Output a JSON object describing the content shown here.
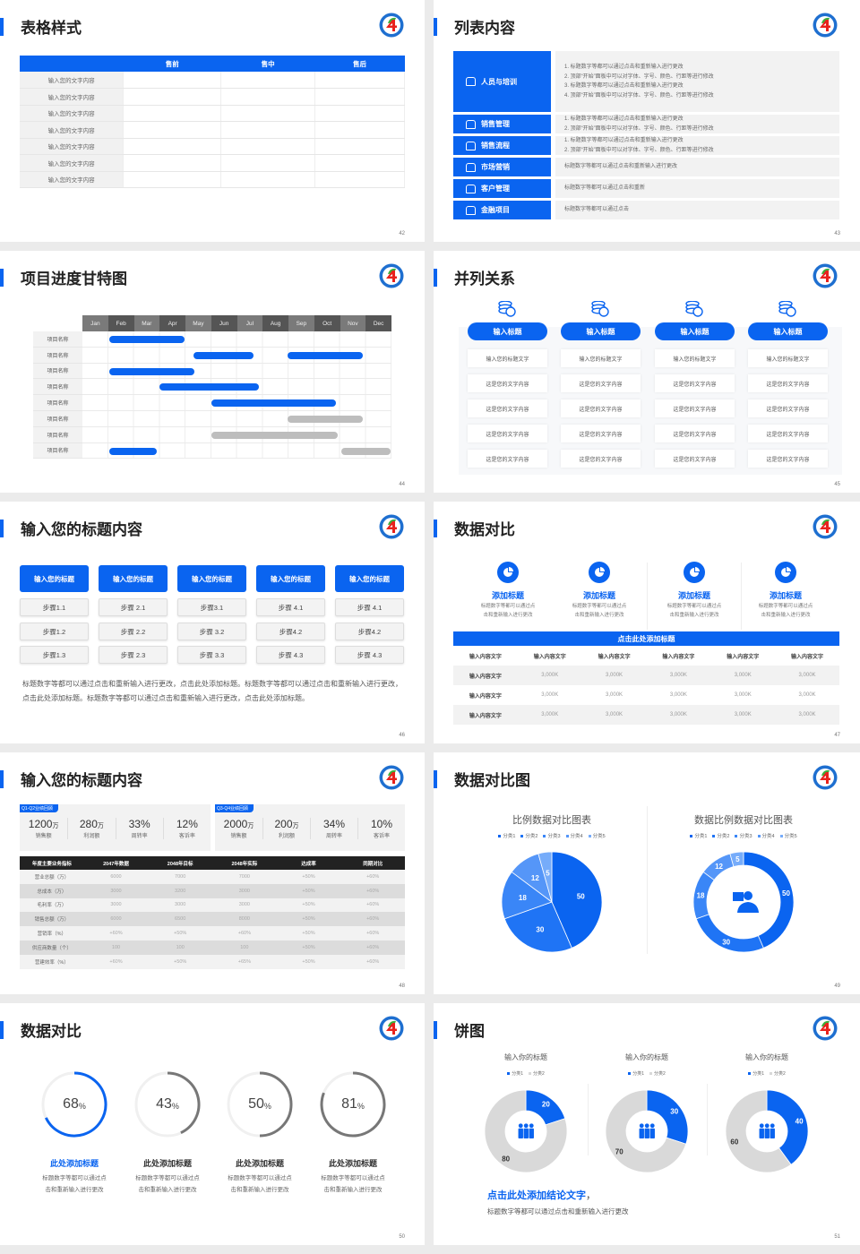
{
  "palette": {
    "accent": "#0a64f0",
    "gray_bar": "#bdbdbd",
    "ring_gray": "#777777",
    "track": "#f0f0f0",
    "donut_gray": "#d9d9d9",
    "pie": [
      "#0a64f0",
      "#1f74f5",
      "#3a86f7",
      "#5596f8",
      "#76acfa"
    ]
  },
  "s42": {
    "title": "表格样式",
    "page": "42",
    "table": {
      "headers": [
        "",
        "售前",
        "售中",
        "售后"
      ],
      "rows": [
        "输入您的文字内容",
        "输入您的文字内容",
        "输入您的文字内容",
        "输入您的文字内容",
        "输入您的文字内容",
        "输入您的文字内容",
        "输入您的文字内容"
      ]
    }
  },
  "s43": {
    "title": "列表内容",
    "page": "43",
    "items": [
      {
        "label": "人员与培训",
        "icon": "training-icon",
        "lines": [
          "1.   标题数字等都可以通过点击和重新输入进行更改",
          "2.   顶部“开始”面板中可以对字体、字号、颜色、行距等进行修改",
          "3.   标题数字等都可以通过点击和重新输入进行更改",
          "4.   顶部“开始”面板中可以对字体、字号、颜色、行距等进行修改"
        ]
      },
      {
        "label": "销售管理",
        "icon": "user-gear-icon",
        "lines": [
          "1.   标题数字等都可以通过点击和重新输入进行更改",
          "2.   顶部“开始”面板中可以对字体、字号、颜色、行距等进行修改"
        ]
      },
      {
        "label": "销售流程",
        "icon": "cycle-icon",
        "lines": [
          "1.   标题数字等都可以通过点击和重新输入进行更改",
          "2.   顶部“开始”面板中可以对字体、字号、颜色、行距等进行修改"
        ]
      },
      {
        "label": "市场营销",
        "icon": "bar-chart-icon",
        "lines": [
          "标题数字等都可以通过点击和重新输入进行更改"
        ]
      },
      {
        "label": "客户管理",
        "icon": "users-icon",
        "lines": [
          "标题数字等都可以通过点击和重新"
        ]
      },
      {
        "label": "金融项目",
        "icon": "finance-icon",
        "lines": [
          "标题数字等都可以通过点击"
        ]
      }
    ]
  },
  "s44": {
    "title": "项目进度甘特图",
    "page": "44",
    "months": [
      "Jan",
      "Feb",
      "Mar",
      "Apr",
      "May",
      "Jun",
      "Jul",
      "Aug",
      "Sep",
      "Oct",
      "Nov",
      "Dec"
    ],
    "rows": [
      {
        "label": "项目名称",
        "bars": [
          {
            "start": 1.05,
            "end": 3.95,
            "status": "active"
          }
        ]
      },
      {
        "label": "项目名称",
        "bars": [
          {
            "start": 4.3,
            "end": 6.65,
            "status": "active"
          },
          {
            "start": 7.95,
            "end": 10.9,
            "status": "active"
          }
        ]
      },
      {
        "label": "项目名称",
        "bars": [
          {
            "start": 1.05,
            "end": 4.35,
            "status": "active"
          }
        ]
      },
      {
        "label": "项目名称",
        "bars": [
          {
            "start": 3.0,
            "end": 6.85,
            "status": "active"
          }
        ]
      },
      {
        "label": "项目名称",
        "bars": [
          {
            "start": 5.0,
            "end": 9.85,
            "status": "active"
          }
        ]
      },
      {
        "label": "项目名称",
        "bars": [
          {
            "start": 7.95,
            "end": 10.9,
            "status": "pending"
          }
        ]
      },
      {
        "label": "项目名称",
        "bars": [
          {
            "start": 5.0,
            "end": 9.9,
            "status": "pending"
          }
        ]
      },
      {
        "label": "项目名称",
        "bars": [
          {
            "start": 1.05,
            "end": 2.9,
            "status": "active"
          },
          {
            "start": 10.05,
            "end": 11.95,
            "status": "pending"
          }
        ]
      }
    ]
  },
  "s45": {
    "title": "并列关系",
    "page": "45",
    "columns": [
      {
        "heading": "输入标题",
        "cells": [
          "输入您的标题文字",
          "这是您的文字内容",
          "这是您的文字内容",
          "这是您的文字内容",
          "这是您的文字内容"
        ]
      },
      {
        "heading": "输入标题",
        "cells": [
          "输入您的标题文字",
          "这是您的文字内容",
          "这是您的文字内容",
          "这是您的文字内容",
          "这是您的文字内容"
        ]
      },
      {
        "heading": "输入标题",
        "cells": [
          "输入您的标题文字",
          "这是您的文字内容",
          "这是您的文字内容",
          "这是您的文字内容",
          "这是您的文字内容"
        ]
      },
      {
        "heading": "输入标题",
        "cells": [
          "输入您的标题文字",
          "这是您的文字内容",
          "这是您的文字内容",
          "这是您的文字内容",
          "这是您的文字内容"
        ]
      }
    ]
  },
  "s46": {
    "title": "输入您的标题内容",
    "page": "46",
    "columns": [
      {
        "heading": "输入您的标题",
        "steps": [
          "步骤1.1",
          "步骤1.2",
          "步骤1.3"
        ]
      },
      {
        "heading": "输入您的标题",
        "steps": [
          "步骤 2.1",
          "步骤 2.2",
          "步骤 2.3"
        ]
      },
      {
        "heading": "输入您的标题",
        "steps": [
          "步骤3.1",
          "步骤 3.2",
          "步骤 3.3"
        ]
      },
      {
        "heading": "输入您的标题",
        "steps": [
          "步骤 4.1",
          "步骤4.2",
          "步骤 4.3"
        ]
      },
      {
        "heading": "输入您的标题",
        "steps": [
          "步骤 4.1",
          "步骤4.2",
          "步骤 4.3"
        ]
      }
    ],
    "paragraph": "标题数字等都可以通过点击和重新输入进行更改，点击此处添加标题。标题数字等都可以通过点击和重新输入进行更改，点击此处添加标题。标题数字等都可以通过点击和重新输入进行更改，点击此处添加标题。"
  },
  "s47": {
    "title": "数据对比",
    "page": "47",
    "features": [
      {
        "title": "添加标题",
        "desc": [
          "标题数字等都可以通过点",
          "击和重新输入进行更改"
        ]
      },
      {
        "title": "添加标题",
        "desc": [
          "标题数字等都可以通过点",
          "击和重新输入进行更改"
        ]
      },
      {
        "title": "添加标题",
        "desc": [
          "标题数字等都可以通过点",
          "击和重新输入进行更改"
        ]
      },
      {
        "title": "添加标题",
        "desc": [
          "标题数字等都可以通过点",
          "击和重新输入进行更改"
        ]
      }
    ],
    "banner": "点击此处添加标题",
    "table": {
      "headers": [
        "输入内容文字",
        "输入内容文字",
        "输入内容文字",
        "输入内容文字",
        "输入内容文字",
        "输入内容文字"
      ],
      "rows": [
        [
          "输入内容文字",
          "3,000K",
          "3,000K",
          "3,000K",
          "3,000K",
          "3,000K"
        ],
        [
          "输入内容文字",
          "3,000K",
          "3,000K",
          "3,000K",
          "3,000K",
          "3,000K"
        ],
        [
          "输入内容文字",
          "3,000K",
          "3,000K",
          "3,000K",
          "3,000K",
          "3,000K"
        ]
      ]
    }
  },
  "s48": {
    "title": "输入您的标题内容",
    "page": "48",
    "panels": [
      {
        "tag": "Q1-Q2业绩回顾",
        "items": [
          {
            "value": "1200",
            "unit": "万",
            "label": "销售额"
          },
          {
            "value": "280",
            "unit": "万",
            "label": "利润额"
          },
          {
            "value": "33%",
            "unit": "",
            "label": "周转率"
          },
          {
            "value": "12%",
            "unit": "",
            "label": "客诉率"
          }
        ]
      },
      {
        "tag": "Q3-Q4业绩回顾",
        "items": [
          {
            "value": "2000",
            "unit": "万",
            "label": "销售额"
          },
          {
            "value": "200",
            "unit": "万",
            "label": "利润额"
          },
          {
            "value": "34%",
            "unit": "",
            "label": "周转率"
          },
          {
            "value": "10%",
            "unit": "",
            "label": "客诉率"
          }
        ]
      }
    ],
    "table": {
      "headers": [
        "年度主要业务指标",
        "2047年数据",
        "2048年目标",
        "2048年实际",
        "达成率",
        "同期对比"
      ],
      "rows": [
        [
          "营业总额（万）",
          "6000",
          "7000",
          "7000",
          "+50%",
          "+60%"
        ],
        [
          "总成本（万）",
          "3000",
          "3200",
          "3000",
          "+50%",
          "+60%"
        ],
        [
          "毛利率（万）",
          "3000",
          "3000",
          "3000",
          "+50%",
          "+60%"
        ],
        [
          "销售总额（万）",
          "6000",
          "6500",
          "8000",
          "+50%",
          "+60%"
        ],
        [
          "营销率（%）",
          "+60%",
          "+50%",
          "+60%",
          "+50%",
          "+60%"
        ],
        [
          "供应商数量（个）",
          "100",
          "100",
          "100",
          "+50%",
          "+60%"
        ],
        [
          "营建效率（%）",
          "+60%",
          "+50%",
          "+65%",
          "+50%",
          "+60%"
        ]
      ]
    }
  },
  "s49": {
    "title": "数据对比图",
    "page": "49"
  },
  "s50": {
    "title": "数据对比",
    "page": "50",
    "gauges": [
      {
        "value": 68,
        "unit": "%",
        "title": "此处添加标题",
        "desc": [
          "标题数字等都可以通过点",
          "击和重新输入进行更改"
        ],
        "highlight": true
      },
      {
        "value": 43,
        "unit": "%",
        "title": "此处添加标题",
        "desc": [
          "标题数字等都可以通过点",
          "击和重新输入进行更改"
        ],
        "highlight": false
      },
      {
        "value": 50,
        "unit": "%",
        "title": "此处添加标题",
        "desc": [
          "标题数字等都可以通过点",
          "击和重新输入进行更改"
        ],
        "highlight": false
      },
      {
        "value": 81,
        "unit": "%",
        "title": "此处添加标题",
        "desc": [
          "标题数字等都可以通过点",
          "击和重新输入进行更改"
        ],
        "highlight": false
      }
    ]
  },
  "s51": {
    "title": "饼图",
    "page": "51",
    "conclusion": "点击此处添加结论文字",
    "conclusion_suffix": "，",
    "text": "标题数字等都可以通过点击和重新输入进行更改"
  },
  "chart_data": [
    {
      "type": "pie",
      "title": "比例数据对比图表",
      "categories": [
        "分类1",
        "分类2",
        "分类3",
        "分类4",
        "分类5"
      ],
      "values": [
        50,
        30,
        18,
        12,
        5
      ],
      "legend": "top",
      "data_labels": true
    },
    {
      "type": "pie",
      "hole": true,
      "title": "数据比例数据对比图表",
      "categories": [
        "分类1",
        "分类2",
        "分类3",
        "分类4",
        "分类5"
      ],
      "values": [
        50,
        30,
        18,
        12,
        5
      ],
      "legend": "top",
      "data_labels": true
    },
    {
      "type": "pie",
      "hole": true,
      "title": "输入你的标题",
      "categories": [
        "分类1",
        "分类2"
      ],
      "values": [
        20,
        80
      ],
      "legend": "top"
    },
    {
      "type": "pie",
      "hole": true,
      "title": "输入你的标题",
      "categories": [
        "分类1",
        "分类2"
      ],
      "values": [
        30,
        70
      ],
      "legend": "top"
    },
    {
      "type": "pie",
      "hole": true,
      "title": "输入你的标题",
      "categories": [
        "分类1",
        "分类2"
      ],
      "values": [
        40,
        60
      ],
      "legend": "top"
    }
  ]
}
